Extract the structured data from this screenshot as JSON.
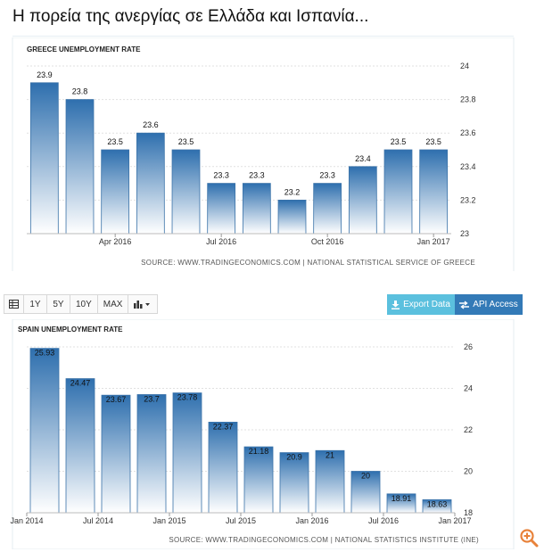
{
  "header": {
    "title": "Η πορεία της ανεργίας σε Ελλάδα και Ισπανία..."
  },
  "toolbar": {
    "ranges": [
      "1Y",
      "5Y",
      "10Y",
      "MAX"
    ],
    "export_label": "Export Data",
    "api_label": "API Access",
    "icons": {
      "table": "table-icon",
      "chart_type": "bar-chart-icon",
      "export": "download-icon",
      "api": "swap-icon",
      "zoom": "zoom-in-icon"
    }
  },
  "colors": {
    "bar_top": "#2e6fae",
    "bar_bottom": "#ffffff",
    "bar_edge": "#3a72a8",
    "export_btn": "#5bc0de",
    "api_btn": "#337ab7",
    "zoom_icon": "#e8823a"
  },
  "chart_data": [
    {
      "type": "bar",
      "title": "GREECE UNEMPLOYMENT RATE",
      "source": "SOURCE: WWW.TRADINGECONOMICS.COM  |  NATIONAL STATISTICAL SERVICE OF GREECE",
      "values": [
        23.9,
        23.8,
        23.5,
        23.6,
        23.5,
        23.3,
        23.3,
        23.2,
        23.3,
        23.4,
        23.5,
        23.5
      ],
      "data_labels": [
        "23.9",
        "23.8",
        "23.5",
        "23.6",
        "23.5",
        "23.3",
        "23.3",
        "23.2",
        "23.3",
        "23.4",
        "23.5",
        "23.5"
      ],
      "x_tick_labels": [
        {
          "label": "Apr 2016",
          "index": 2
        },
        {
          "label": "Jul 2016",
          "index": 5
        },
        {
          "label": "Oct 2016",
          "index": 8
        },
        {
          "label": "Jan 2017",
          "index": 11
        }
      ],
      "y_ticks": [
        "24",
        "23.8",
        "23.6",
        "23.4",
        "23.2",
        "23"
      ],
      "ylim": [
        23,
        24
      ],
      "y_axis_side": "right",
      "grid": true
    },
    {
      "type": "bar",
      "title": "SPAIN UNEMPLOYMENT RATE",
      "source": "SOURCE: WWW.TRADINGECONOMICS.COM  |  NATIONAL STATISTICS INSTITUTE (INE)",
      "values": [
        25.93,
        24.47,
        23.67,
        23.7,
        23.78,
        22.37,
        21.18,
        20.9,
        21,
        20,
        18.91,
        18.63
      ],
      "data_labels": [
        "25.93",
        "24.47",
        "23.67",
        "23.7",
        "23.78",
        "22.37",
        "21.18",
        "20.9",
        "21",
        "20",
        "18.91",
        "18.63"
      ],
      "x_tick_labels": [
        {
          "label": "Jan 2014",
          "index": -0.5
        },
        {
          "label": "Jul 2014",
          "index": 1.5
        },
        {
          "label": "Jan 2015",
          "index": 3.5
        },
        {
          "label": "Jul 2015",
          "index": 5.5
        },
        {
          "label": "Jan 2016",
          "index": 7.5
        },
        {
          "label": "Jul 2016",
          "index": 9.5
        },
        {
          "label": "Jan 2017",
          "index": 11.5
        }
      ],
      "y_ticks": [
        "26",
        "24",
        "22",
        "20",
        "18"
      ],
      "ylim": [
        18,
        26
      ],
      "y_axis_side": "right",
      "grid": true
    }
  ]
}
